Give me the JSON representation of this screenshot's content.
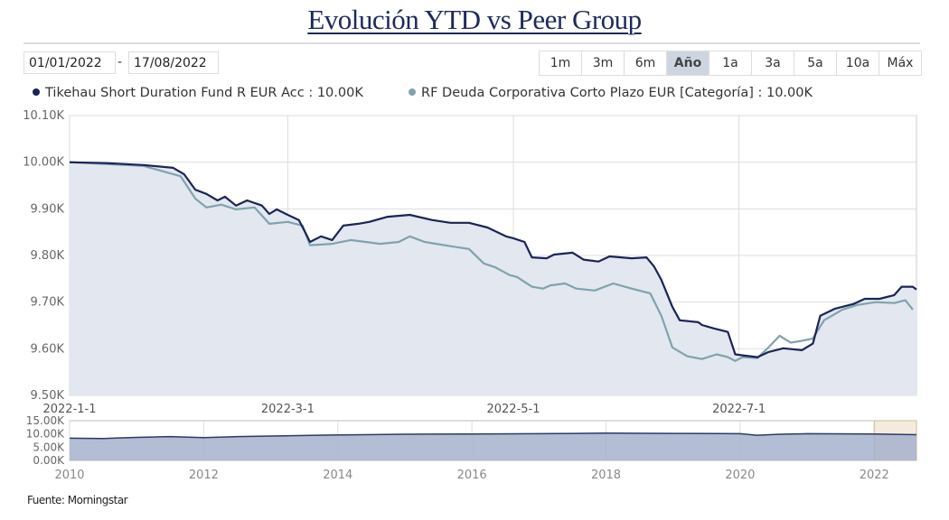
{
  "title": "Evolución YTD vs Peer Group",
  "date_from": "01/01/2022",
  "date_sep": "-",
  "date_to": "17/08/2022",
  "range_buttons": [
    {
      "label": "1m",
      "active": false
    },
    {
      "label": "3m",
      "active": false
    },
    {
      "label": "6m",
      "active": false
    },
    {
      "label": "Año",
      "active": true
    },
    {
      "label": "1a",
      "active": false
    },
    {
      "label": "3a",
      "active": false
    },
    {
      "label": "5a",
      "active": false
    },
    {
      "label": "10a",
      "active": false
    },
    {
      "label": "Máx",
      "active": false
    }
  ],
  "source": "Fuente: Morningstar",
  "colors": {
    "fund": "#1b2456",
    "peer": "#7fa3ad",
    "fill": "#e3e7ef",
    "nav_fill": "#a6b1cc",
    "nav_sel": "#f3e6d4"
  },
  "chart_data": [
    {
      "type": "line",
      "xlabel": "",
      "ylabel": "",
      "x_start_date": "2022-01-01",
      "x_unit": "days since 2022-01-01",
      "xlim": [
        0,
        229
      ],
      "x_ticks": [
        {
          "day": 0,
          "label": "2022-1-1"
        },
        {
          "day": 59,
          "label": "2022-3-1"
        },
        {
          "day": 120,
          "label": "2022-5-1"
        },
        {
          "day": 181,
          "label": "2022-7-1"
        }
      ],
      "ylim": [
        9.5,
        10.1
      ],
      "y_ticks": [
        {
          "v": 9.5,
          "label": "9.50K"
        },
        {
          "v": 9.6,
          "label": "9.60K"
        },
        {
          "v": 9.7,
          "label": "9.70K"
        },
        {
          "v": 9.8,
          "label": "9.80K"
        },
        {
          "v": 9.9,
          "label": "9.90K"
        },
        {
          "v": 10.0,
          "label": "10.00K"
        },
        {
          "v": 10.1,
          "label": "10.10K"
        }
      ],
      "grid": true,
      "legend_position": "top-left",
      "series": [
        {
          "name": "Tikehau Short Duration Fund R EUR Acc",
          "legend": "Tikehau Short Duration Fund R EUR Acc : 10.00K",
          "color_key": "fund",
          "points": [
            [
              0,
              10.0
            ],
            [
              10,
              9.998
            ],
            [
              20,
              9.994
            ],
            [
              28,
              9.988
            ],
            [
              31,
              9.974
            ],
            [
              34,
              9.941
            ],
            [
              37,
              9.932
            ],
            [
              40,
              9.918
            ],
            [
              42,
              9.926
            ],
            [
              45,
              9.907
            ],
            [
              48,
              9.918
            ],
            [
              52,
              9.907
            ],
            [
              54,
              9.889
            ],
            [
              56,
              9.899
            ],
            [
              59,
              9.887
            ],
            [
              62,
              9.876
            ],
            [
              64,
              9.845
            ],
            [
              65,
              9.829
            ],
            [
              68,
              9.841
            ],
            [
              71,
              9.833
            ],
            [
              74,
              9.864
            ],
            [
              78,
              9.868
            ],
            [
              81,
              9.872
            ],
            [
              86,
              9.883
            ],
            [
              92,
              9.887
            ],
            [
              98,
              9.876
            ],
            [
              103,
              9.87
            ],
            [
              108,
              9.87
            ],
            [
              113,
              9.86
            ],
            [
              118,
              9.841
            ],
            [
              120,
              9.837
            ],
            [
              123,
              9.829
            ],
            [
              125,
              9.796
            ],
            [
              129,
              9.794
            ],
            [
              131,
              9.802
            ],
            [
              136,
              9.806
            ],
            [
              139,
              9.791
            ],
            [
              143,
              9.787
            ],
            [
              146,
              9.798
            ],
            [
              152,
              9.794
            ],
            [
              156,
              9.796
            ],
            [
              158,
              9.777
            ],
            [
              160,
              9.748
            ],
            [
              163,
              9.69
            ],
            [
              165,
              9.661
            ],
            [
              170,
              9.657
            ],
            [
              171,
              9.651
            ],
            [
              174,
              9.644
            ],
            [
              178,
              9.636
            ],
            [
              180,
              9.588
            ],
            [
              182,
              9.586
            ],
            [
              186,
              9.582
            ],
            [
              189,
              9.593
            ],
            [
              193,
              9.601
            ],
            [
              198,
              9.597
            ],
            [
              201,
              9.611
            ],
            [
              203,
              9.671
            ],
            [
              207,
              9.686
            ],
            [
              212,
              9.696
            ],
            [
              215,
              9.707
            ],
            [
              219,
              9.707
            ],
            [
              223,
              9.715
            ],
            [
              225,
              9.733
            ],
            [
              228,
              9.733
            ],
            [
              229,
              9.727
            ]
          ]
        },
        {
          "name": "RF Deuda Corporativa Corto Plazo EUR [Categoría]",
          "legend": "RF Deuda Corporativa Corto Plazo EUR [Categoría] : 10.00K",
          "color_key": "peer",
          "points": [
            [
              0,
              10.0
            ],
            [
              20,
              9.992
            ],
            [
              30,
              9.97
            ],
            [
              34,
              9.922
            ],
            [
              37,
              9.903
            ],
            [
              41,
              9.909
            ],
            [
              45,
              9.899
            ],
            [
              50,
              9.903
            ],
            [
              54,
              9.868
            ],
            [
              59,
              9.872
            ],
            [
              63,
              9.864
            ],
            [
              65,
              9.822
            ],
            [
              71,
              9.825
            ],
            [
              76,
              9.833
            ],
            [
              84,
              9.825
            ],
            [
              89,
              9.829
            ],
            [
              92,
              9.841
            ],
            [
              96,
              9.829
            ],
            [
              103,
              9.82
            ],
            [
              108,
              9.814
            ],
            [
              112,
              9.783
            ],
            [
              115,
              9.775
            ],
            [
              119,
              9.758
            ],
            [
              121,
              9.754
            ],
            [
              125,
              9.733
            ],
            [
              128,
              9.729
            ],
            [
              130,
              9.736
            ],
            [
              134,
              9.74
            ],
            [
              137,
              9.729
            ],
            [
              142,
              9.725
            ],
            [
              147,
              9.74
            ],
            [
              152,
              9.729
            ],
            [
              157,
              9.719
            ],
            [
              160,
              9.671
            ],
            [
              163,
              9.603
            ],
            [
              167,
              9.584
            ],
            [
              171,
              9.578
            ],
            [
              175,
              9.588
            ],
            [
              178,
              9.582
            ],
            [
              180,
              9.574
            ],
            [
              182,
              9.582
            ],
            [
              186,
              9.58
            ],
            [
              189,
              9.603
            ],
            [
              192,
              9.628
            ],
            [
              195,
              9.613
            ],
            [
              198,
              9.617
            ],
            [
              201,
              9.622
            ],
            [
              204,
              9.661
            ],
            [
              209,
              9.684
            ],
            [
              213,
              9.694
            ],
            [
              218,
              9.7
            ],
            [
              223,
              9.698
            ],
            [
              226,
              9.704
            ],
            [
              228,
              9.684
            ]
          ]
        }
      ]
    },
    {
      "type": "area",
      "title": "navigator",
      "xlim": [
        2010,
        2022.63
      ],
      "x_ticks": [
        {
          "v": 2010,
          "label": "2010"
        },
        {
          "v": 2012,
          "label": "2012"
        },
        {
          "v": 2014,
          "label": "2014"
        },
        {
          "v": 2016,
          "label": "2016"
        },
        {
          "v": 2018,
          "label": "2018"
        },
        {
          "v": 2020,
          "label": "2020"
        },
        {
          "v": 2022,
          "label": "2022"
        }
      ],
      "ylim": [
        0,
        15
      ],
      "y_ticks": [
        {
          "v": 0,
          "label": "0.00K"
        },
        {
          "v": 5,
          "label": "5.00K"
        },
        {
          "v": 10,
          "label": "10.00K"
        },
        {
          "v": 15,
          "label": "15.00K"
        }
      ],
      "selected_range": [
        2022.0,
        2022.63
      ],
      "series": [
        {
          "name": "Tikehau Short Duration Fund R EUR Acc",
          "points": [
            [
              2010,
              8.4
            ],
            [
              2010.5,
              8.3
            ],
            [
              2011,
              8.7
            ],
            [
              2011.5,
              9.0
            ],
            [
              2012,
              8.6
            ],
            [
              2012.5,
              9.0
            ],
            [
              2013,
              9.2
            ],
            [
              2014,
              9.6
            ],
            [
              2015,
              9.9
            ],
            [
              2016,
              10.0
            ],
            [
              2017,
              10.1
            ],
            [
              2018,
              10.3
            ],
            [
              2019,
              10.2
            ],
            [
              2020,
              10.1
            ],
            [
              2020.25,
              9.5
            ],
            [
              2020.6,
              9.9
            ],
            [
              2021,
              10.1
            ],
            [
              2022,
              10.0
            ],
            [
              2022.63,
              9.7
            ]
          ]
        }
      ]
    }
  ]
}
